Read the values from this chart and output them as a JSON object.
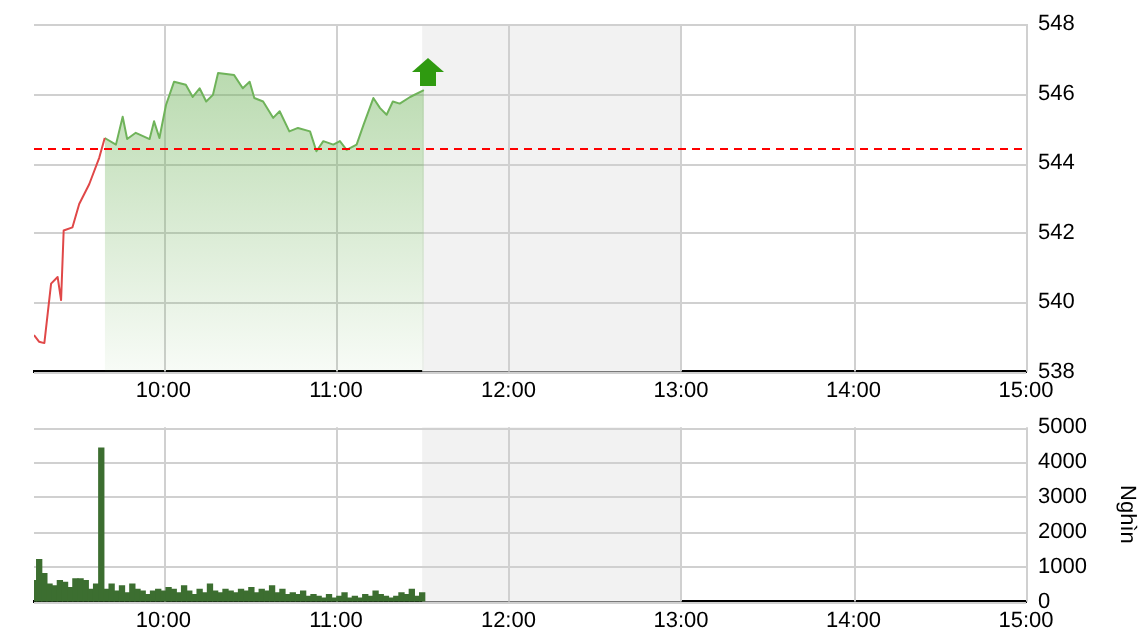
{
  "chart_data": [
    {
      "type": "area",
      "xlim": [
        9.25,
        15
      ],
      "xticks": [
        {
          "value": 10,
          "label": "10:00"
        },
        {
          "value": 11,
          "label": "11:00"
        },
        {
          "value": 12,
          "label": "12:00"
        },
        {
          "value": 13,
          "label": "13:00"
        },
        {
          "value": 14,
          "label": "14:00"
        },
        {
          "value": 15,
          "label": "15:00"
        }
      ],
      "ylim": [
        538,
        548
      ],
      "yticks": [
        538,
        540,
        542,
        544,
        546,
        548
      ],
      "grid": true,
      "legend": false,
      "marker": "none",
      "series": [
        {
          "type": "line",
          "color": "#e04848",
          "x": [
            9.25,
            9.279,
            9.31,
            9.349,
            9.387,
            9.407,
            9.422,
            9.473,
            9.512,
            9.57,
            9.628,
            9.66
          ],
          "values": [
            539.05,
            538.86,
            538.82,
            540.53,
            540.72,
            540.06,
            542.06,
            542.15,
            542.82,
            543.39,
            544.15,
            544.72
          ]
        },
        {
          "color": "#6fb35a",
          "x": [
            9.66,
            9.725,
            9.764,
            9.79,
            9.84,
            9.92,
            9.946,
            9.977,
            10.015,
            10.062,
            10.13,
            10.17,
            10.21,
            10.248,
            10.287,
            10.317,
            10.41,
            10.46,
            10.5,
            10.527,
            10.578,
            10.636,
            10.674,
            10.73,
            10.78,
            10.85,
            10.887,
            10.927,
            10.985,
            11.023,
            11.062,
            11.12,
            11.16,
            11.217,
            11.256,
            11.294,
            11.33,
            11.37,
            11.43,
            11.51
          ],
          "values": [
            544.72,
            544.53,
            545.33,
            544.69,
            544.87,
            544.69,
            545.2,
            544.72,
            545.67,
            546.34,
            546.25,
            545.9,
            546.15,
            545.77,
            545.96,
            546.59,
            546.53,
            546.15,
            546.34,
            545.87,
            545.77,
            545.3,
            545.49,
            544.91,
            545.01,
            544.91,
            544.34,
            544.63,
            544.53,
            544.63,
            544.38,
            544.53,
            545.1,
            545.87,
            545.58,
            545.39,
            545.77,
            545.71,
            545.9,
            546.1
          ]
        }
      ],
      "ref_lines": [
        {
          "axis": "y",
          "value": 544.45,
          "color": "#ff0000",
          "line_style": "dashed"
        }
      ],
      "bands": [
        {
          "axis": "x",
          "from": 11.5,
          "to": 13,
          "color": "#f2f2f2"
        }
      ]
    },
    {
      "type": "bar",
      "ylabel": "Nghìn",
      "xlim": [
        9.25,
        15
      ],
      "xticks": [
        {
          "value": 10,
          "label": "10:00"
        },
        {
          "value": 11,
          "label": "11:00"
        },
        {
          "value": 12,
          "label": "12:00"
        },
        {
          "value": 13,
          "label": "13:00"
        },
        {
          "value": 14,
          "label": "14:00"
        },
        {
          "value": 15,
          "label": "15:00"
        }
      ],
      "ylim": [
        0,
        5000
      ],
      "yticks": [
        0,
        1000,
        2000,
        3000,
        4000,
        5000
      ],
      "grid": true,
      "legend": false,
      "series": [
        {
          "color": "#3c6e30",
          "x": [
            9.25,
            9.28,
            9.31,
            9.34,
            9.37,
            9.4,
            9.43,
            9.46,
            9.49,
            9.52,
            9.55,
            9.58,
            9.61,
            9.64,
            9.67,
            9.7,
            9.73,
            9.76,
            9.79,
            9.82,
            9.85,
            9.88,
            9.91,
            9.94,
            9.97,
            10.0,
            10.03,
            10.06,
            10.09,
            10.12,
            10.15,
            10.18,
            10.21,
            10.24,
            10.27,
            10.3,
            10.33,
            10.36,
            10.39,
            10.42,
            10.45,
            10.48,
            10.51,
            10.54,
            10.57,
            10.6,
            10.63,
            10.66,
            10.69,
            10.72,
            10.75,
            10.78,
            10.81,
            10.84,
            10.87,
            10.9,
            10.93,
            10.96,
            10.99,
            11.02,
            11.05,
            11.08,
            11.11,
            11.14,
            11.17,
            11.2,
            11.23,
            11.26,
            11.29,
            11.32,
            11.35,
            11.38,
            11.41,
            11.44,
            11.47,
            11.5
          ],
          "values": [
            600,
            1200,
            800,
            500,
            450,
            600,
            550,
            400,
            650,
            650,
            600,
            350,
            500,
            4400,
            350,
            500,
            300,
            450,
            250,
            500,
            350,
            300,
            200,
            300,
            350,
            300,
            400,
            350,
            250,
            450,
            300,
            200,
            350,
            250,
            500,
            300,
            250,
            350,
            300,
            250,
            350,
            300,
            400,
            250,
            350,
            300,
            450,
            250,
            350,
            200,
            250,
            200,
            300,
            150,
            200,
            150,
            100,
            200,
            100,
            150,
            250,
            100,
            150,
            100,
            200,
            150,
            300,
            200,
            150,
            100,
            150,
            250,
            200,
            350,
            150,
            250
          ]
        }
      ],
      "bands": [
        {
          "axis": "x",
          "from": 11.5,
          "to": 13,
          "color": "#f2f2f2"
        }
      ]
    }
  ]
}
